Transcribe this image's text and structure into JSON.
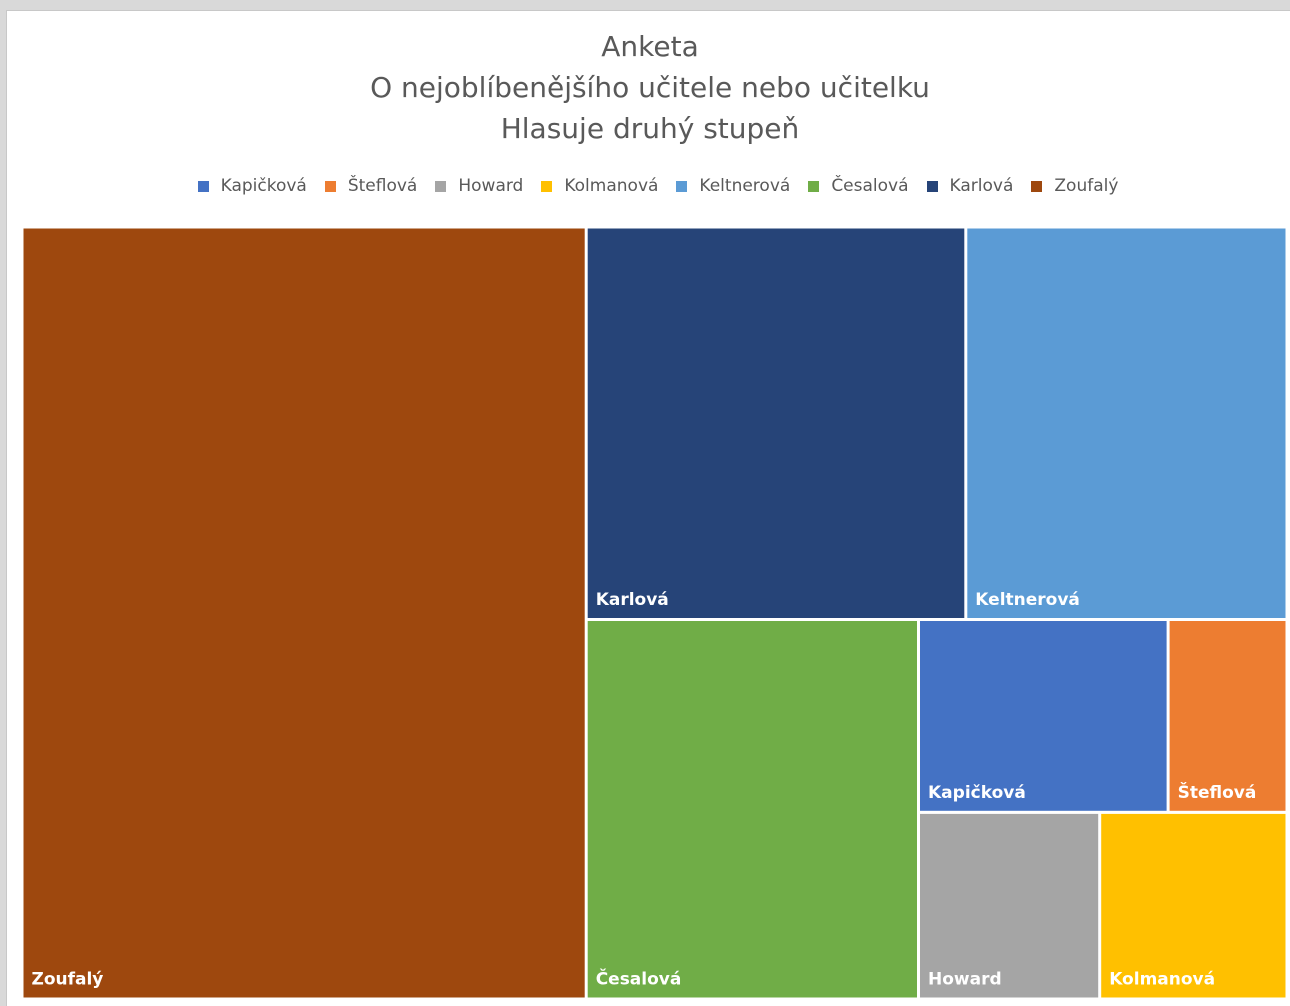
{
  "chart_data": {
    "type": "treemap",
    "title": [
      "Anketa",
      "O nejoblíbenějšího učitele nebo učitelku",
      "Hlasuje druhý stupeň"
    ],
    "legend_position": "top",
    "series": [
      {
        "name": "Kapičková",
        "value": 4.2,
        "color": "#4472c4"
      },
      {
        "name": "Šteflová",
        "value": 2.0,
        "color": "#ed7d31"
      },
      {
        "name": "Howard",
        "value": 2.95,
        "color": "#a5a5a5"
      },
      {
        "name": "Kolmanová",
        "value": 3.05,
        "color": "#ffc000"
      },
      {
        "name": "Keltnerová",
        "value": 11.0,
        "color": "#5b9bd5"
      },
      {
        "name": "Česalová",
        "value": 11.0,
        "color": "#70ad47"
      },
      {
        "name": "Karlová",
        "value": 13.0,
        "color": "#264478"
      },
      {
        "name": "Zoufalý",
        "value": 38.0,
        "color": "#9e480e"
      }
    ]
  }
}
